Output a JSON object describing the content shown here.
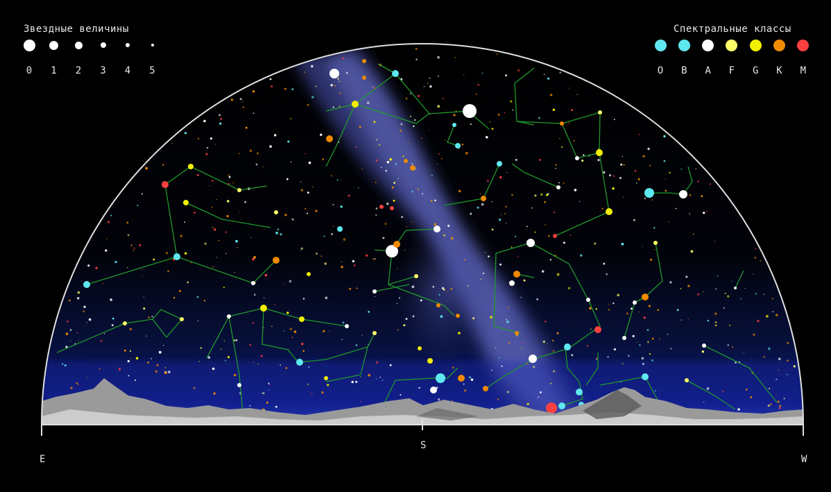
{
  "legend_magnitude": {
    "title": "Звездные величины",
    "labels": [
      "0",
      "1",
      "2",
      "3",
      "4",
      "5"
    ],
    "dot_color": "#ffffff"
  },
  "legend_spectral": {
    "title": "Спектральные классы",
    "labels": [
      "O",
      "B",
      "A",
      "F",
      "G",
      "K",
      "M"
    ],
    "colors": [
      "#5fe8f0",
      "#5fe8f0",
      "#ffffff",
      "#ffff6a",
      "#f2f000",
      "#f08a00",
      "#ff4040"
    ]
  },
  "compass": {
    "east": "E",
    "south": "S",
    "west": "W"
  },
  "colors": {
    "background": "#000000",
    "horizon_arc": "#e0e0e0",
    "constellation_line": "#1f9a2c",
    "milky_way": "#3a3f8c",
    "horizon_glow": "#10208a",
    "mountains": "#b8b8b8"
  }
}
